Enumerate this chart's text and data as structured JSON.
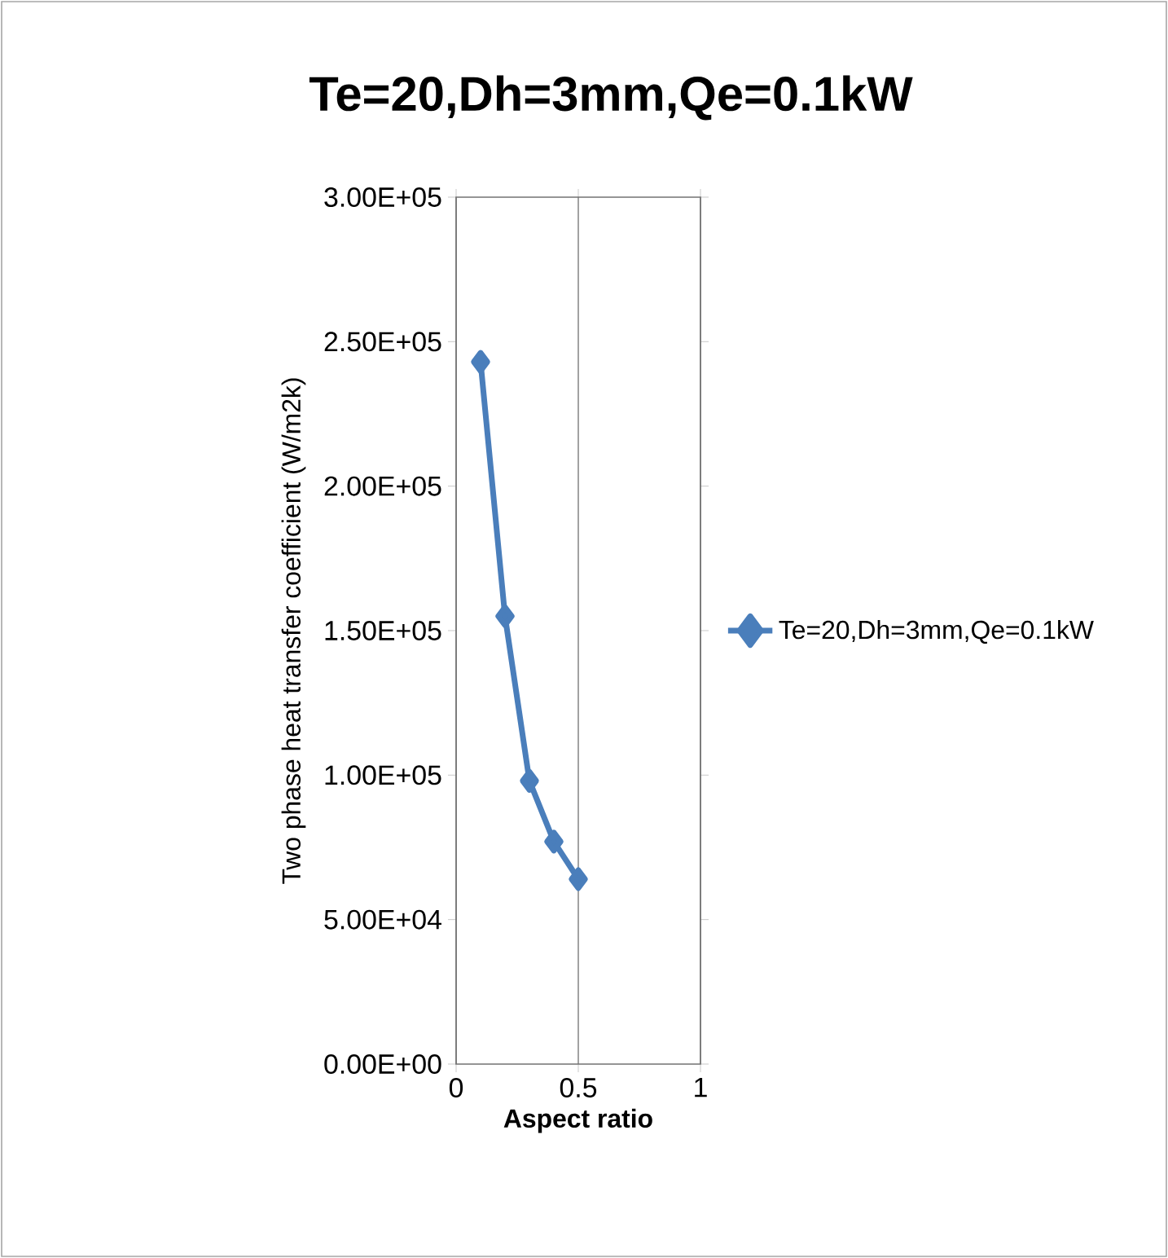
{
  "chart_data": {
    "type": "line",
    "title": "Te=20,Dh=3mm,Qe=0.1kW",
    "xlabel": "Aspect ratio",
    "ylabel": "Two phase heat  transfer coefficient (W/m2k)",
    "x": [
      0.1,
      0.2,
      0.3,
      0.4,
      0.5
    ],
    "series": [
      {
        "name": "Te=20,Dh=3mm,Qe=0.1kW",
        "color": "#4a7ebb",
        "values": [
          243000,
          155000,
          98000,
          77000,
          64000
        ]
      }
    ],
    "xlim": [
      0,
      1
    ],
    "xticks": [
      0,
      0.5,
      1
    ],
    "ylim": [
      0,
      300000
    ],
    "yticks": [
      {
        "value": 0,
        "label": "0.00E+00"
      },
      {
        "value": 50000,
        "label": "5.00E+04"
      },
      {
        "value": 100000,
        "label": "1.00E+05"
      },
      {
        "value": 150000,
        "label": "1.50E+05"
      },
      {
        "value": 200000,
        "label": "2.00E+05"
      },
      {
        "value": 250000,
        "label": "2.50E+05"
      },
      {
        "value": 300000,
        "label": "3.00E+05"
      }
    ],
    "grid": "x",
    "legend": "right",
    "marker": "diamond",
    "line_style": "solid"
  }
}
